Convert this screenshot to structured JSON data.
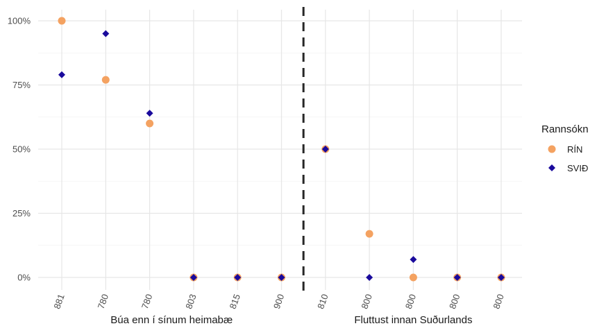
{
  "chart_data": {
    "type": "scatter",
    "categories": [
      "881",
      "780",
      "780",
      "803",
      "815",
      "900",
      "810",
      "800",
      "800",
      "800",
      "800"
    ],
    "series": [
      {
        "name": "RÍN",
        "values": [
          100,
          77,
          60,
          0,
          0,
          0,
          50,
          17,
          0,
          0,
          0
        ],
        "color": "#F4A261",
        "marker": "circle"
      },
      {
        "name": "SVIÐ",
        "values": [
          79,
          95,
          64,
          0,
          0,
          0,
          50,
          0,
          7,
          0,
          0
        ],
        "color": "#1A0A9C",
        "marker": "diamond"
      }
    ],
    "ylim": [
      0,
      100
    ],
    "yticks": [
      0,
      25,
      50,
      75,
      100
    ],
    "ytick_labels": [
      "0%",
      "25%",
      "50%",
      "75%",
      "100%"
    ],
    "groups": [
      {
        "label": "Búa enn í sínum heimabæ",
        "from": 0,
        "to": 5
      },
      {
        "label": "Fluttust innan Suðurlands",
        "from": 6,
        "to": 10
      }
    ],
    "divider_after_index": 5,
    "legend": {
      "title": "Rannsókn",
      "position": "right"
    },
    "grid": true
  }
}
